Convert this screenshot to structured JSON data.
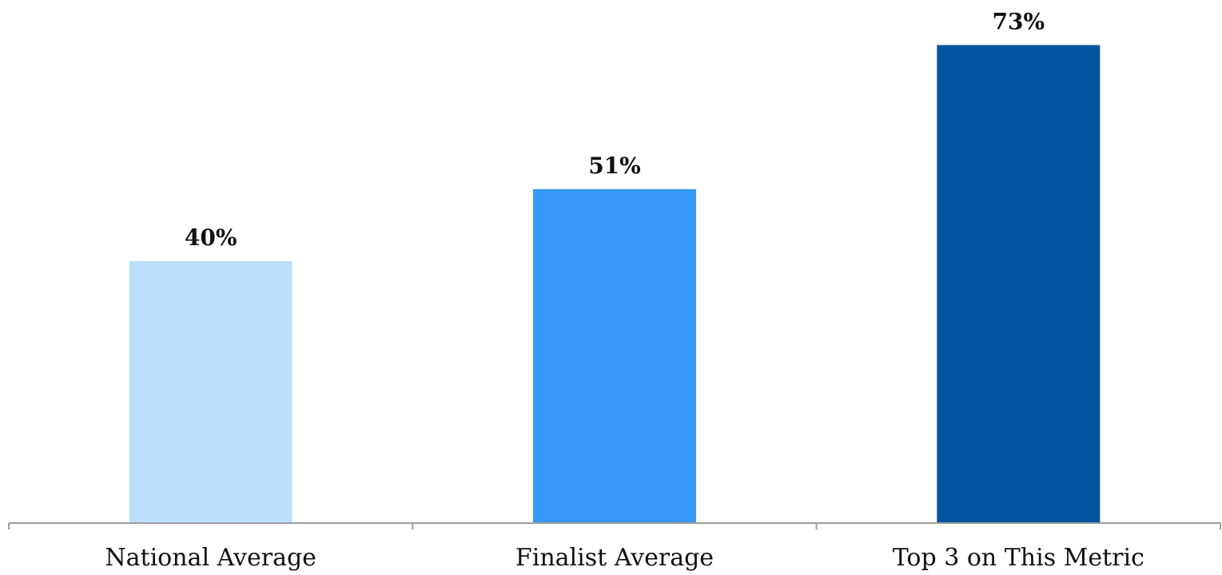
{
  "chart_data": {
    "type": "bar",
    "categories": [
      "National Average",
      "Finalist Average",
      "Top 3 on This Metric"
    ],
    "values": [
      40,
      51,
      73
    ],
    "value_labels": [
      "40%",
      "51%",
      "73%"
    ],
    "colors": [
      "#bbdefb",
      "#3799fb",
      "#02559f"
    ],
    "ylim": [
      0,
      80
    ],
    "grid": false,
    "legend": "none"
  }
}
